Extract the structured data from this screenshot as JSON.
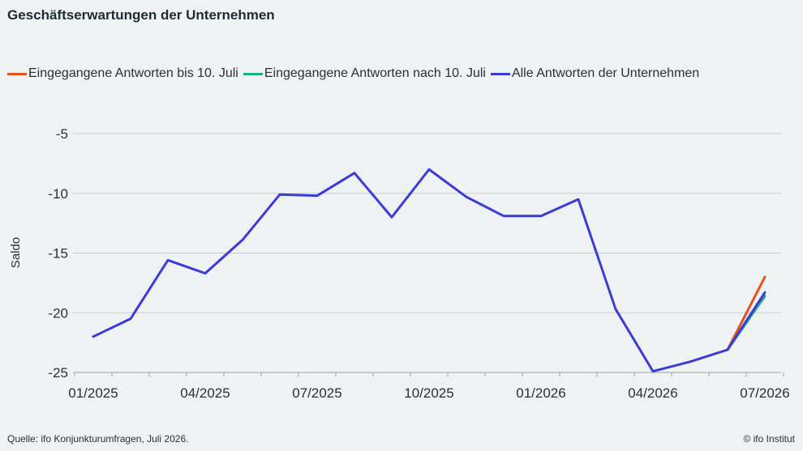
{
  "chart_data": {
    "type": "line",
    "title": "Geschäftserwartungen der Unternehmen",
    "ylabel": "Saldo",
    "xlabel": "",
    "ylim": [
      -25,
      -5
    ],
    "yticks": [
      -5,
      -10,
      -15,
      -20,
      -25
    ],
    "ytick_labels": [
      "-5",
      "-10",
      "-15",
      "-20",
      "-25"
    ],
    "x_tick_labels": [
      "01/2025",
      "04/2025",
      "07/2025",
      "10/2025",
      "01/2026",
      "04/2026",
      "07/2026"
    ],
    "x_tick_months": [
      0,
      3,
      6,
      9,
      12,
      15,
      18
    ],
    "grid": true,
    "legend_position": "top",
    "series": [
      {
        "name": "Eingegangene Antworten bis 10. Juli",
        "color": "#e8501c",
        "x": [
          "06/2026",
          "07/2026"
        ],
        "x_month": [
          17,
          18
        ],
        "values": [
          -23.1,
          -17.0
        ]
      },
      {
        "name": "Eingegangene Antworten nach 10. Juli",
        "color": "#19b07e",
        "x": [
          "06/2026",
          "07/2026"
        ],
        "x_month": [
          17,
          18
        ],
        "values": [
          -23.1,
          -18.6
        ]
      },
      {
        "name": "Alle Antworten der Unternehmen",
        "color": "#3b3bd6",
        "x": [
          "01/2025",
          "02/2025",
          "03/2025",
          "04/2025",
          "05/2025",
          "06/2025",
          "07/2025",
          "08/2025",
          "09/2025",
          "10/2025",
          "11/2025",
          "12/2025",
          "01/2026",
          "02/2026",
          "03/2026",
          "04/2026",
          "05/2026",
          "06/2026",
          "07/2026"
        ],
        "x_month": [
          0,
          1,
          2,
          3,
          4,
          5,
          6,
          7,
          8,
          9,
          10,
          11,
          12,
          13,
          14,
          15,
          16,
          17,
          18
        ],
        "values": [
          -22.0,
          -20.5,
          -15.6,
          -16.7,
          -13.9,
          -10.1,
          -10.2,
          -8.3,
          -12.0,
          -8.0,
          -10.3,
          -11.9,
          -11.9,
          -10.5,
          -19.7,
          -24.9,
          -24.1,
          -23.1,
          -18.3
        ]
      }
    ]
  },
  "footer": {
    "source": "Quelle: ifo Konjunkturumfragen,  Juli 2026.",
    "copyright": "© ifo Institut"
  }
}
